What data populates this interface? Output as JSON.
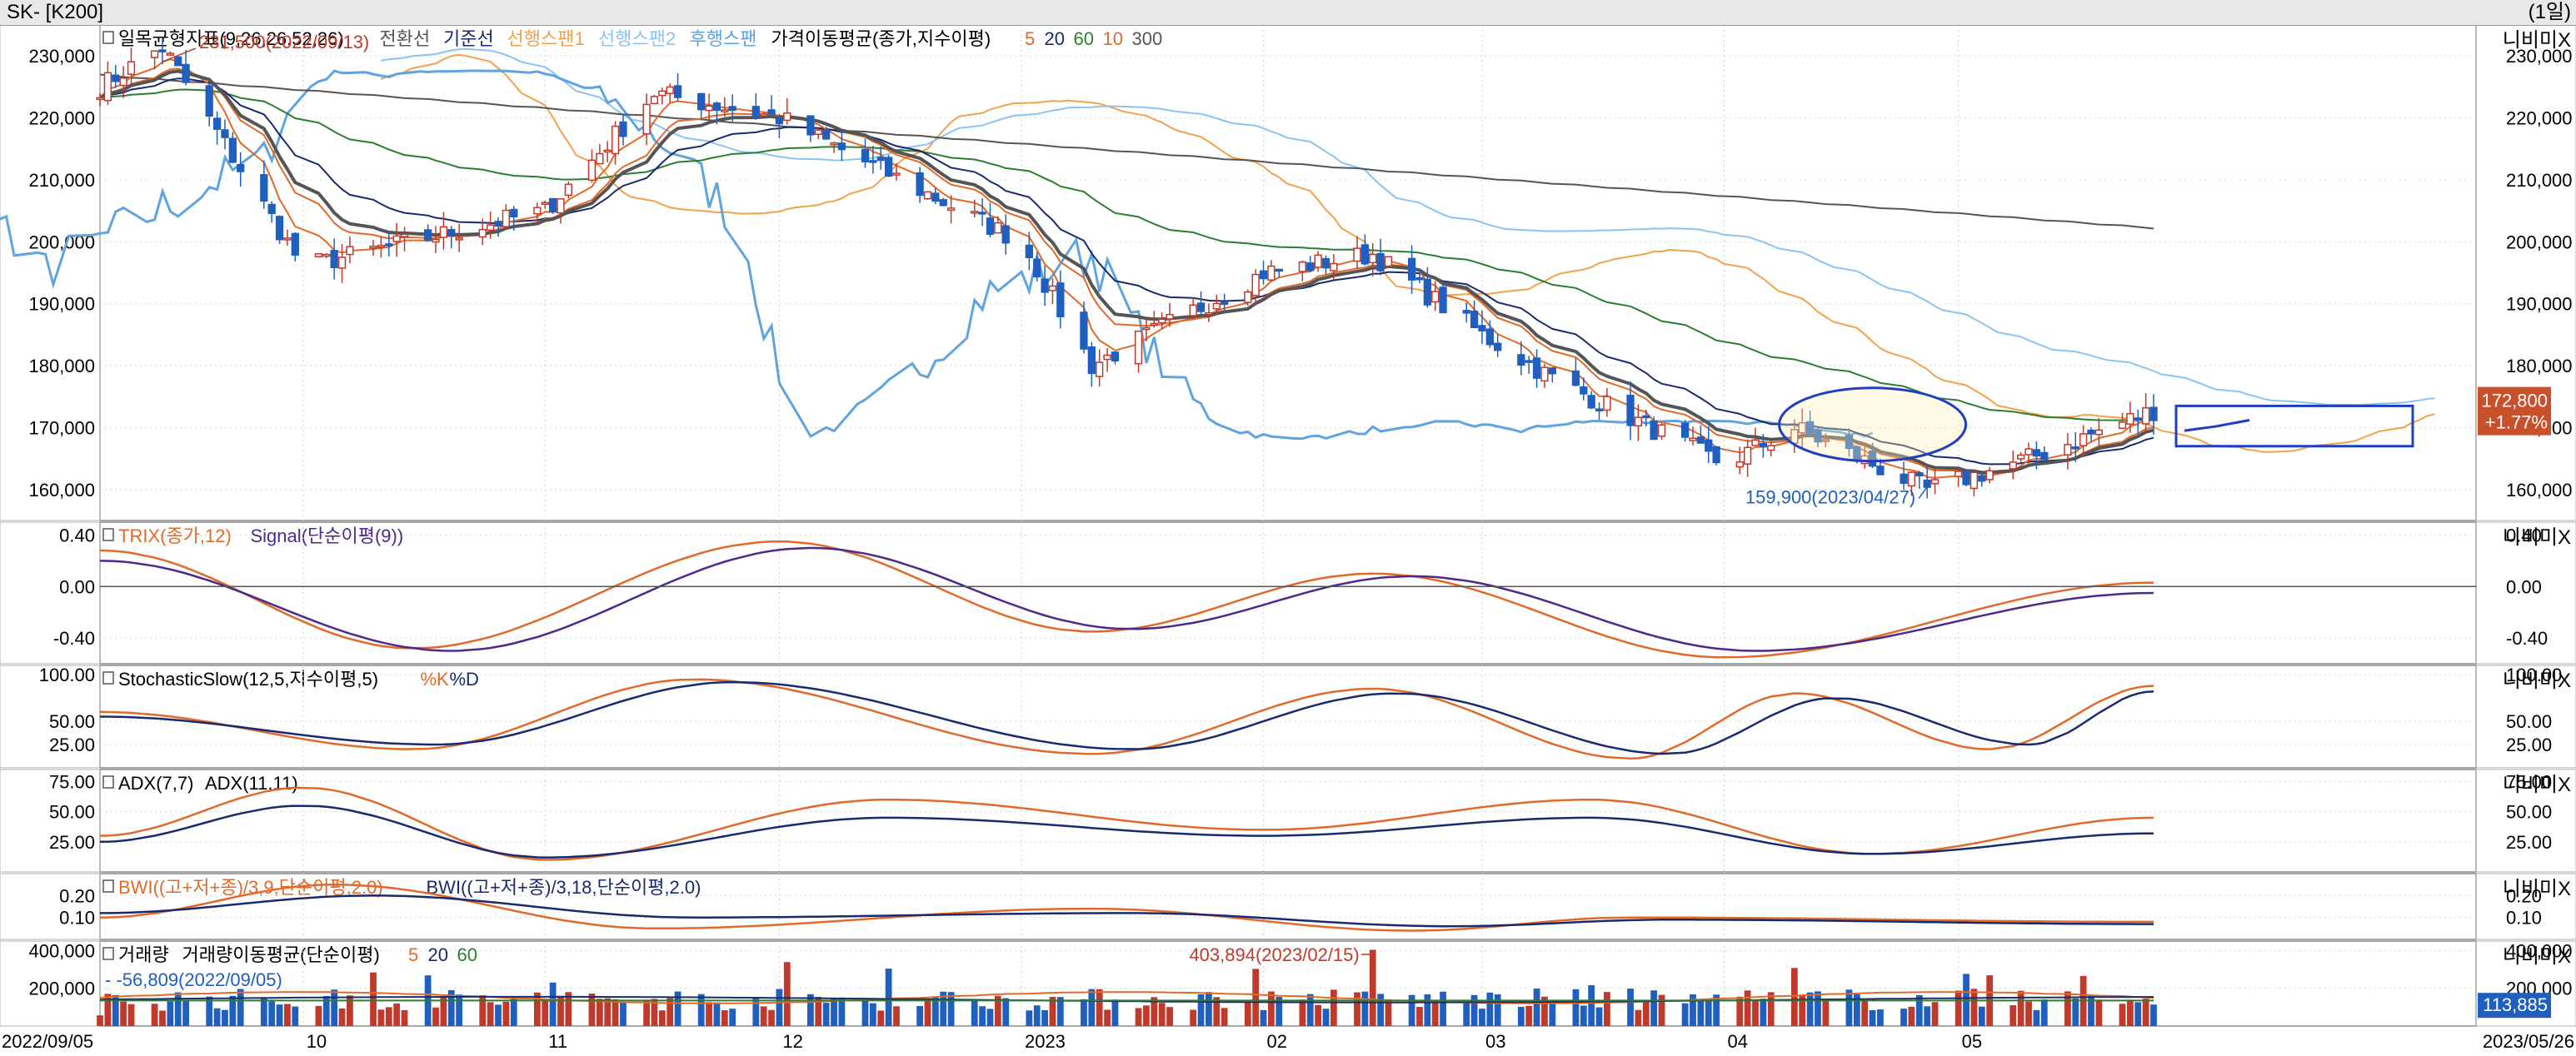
{
  "window": {
    "title": "SK- [K200]",
    "period": "(1일)"
  },
  "colors": {
    "up": "#c0392b",
    "down": "#1f5fbf",
    "conv": "#555555",
    "base": "#1a2a6e",
    "span1": "#f2a24a",
    "span2": "#8cc3f0",
    "lag": "#5fa3e0",
    "ma5": "#e06a2a",
    "ma20": "#1a2a6e",
    "ma60": "#2e7d2e",
    "ma10": "#e06a2a",
    "ma300": "#555555",
    "trix": "#e06a2a",
    "signal": "#4b2a8a",
    "k": "#e06a2a",
    "d": "#1a2a6e",
    "adx7": "#e06a2a",
    "adx11": "#1a2a6e",
    "bwi1": "#e06a2a",
    "bwi2": "#1a2a6e",
    "vol_ma5": "#e06a2a",
    "vol_ma20": "#1a2a6e",
    "vol_ma60": "#2e7d2e",
    "callout": "#1f3fbf"
  },
  "panes": {
    "price": {
      "legend": [
        {
          "text": "일목균형지표(9,26,26,52,26)",
          "color": "#000000"
        },
        {
          "text": "전환선",
          "color": "#555555"
        },
        {
          "text": "기준선",
          "color": "#1a2a6e"
        },
        {
          "text": "선행스팬1",
          "color": "#f2a24a"
        },
        {
          "text": "선행스팬2",
          "color": "#8cc3f0"
        },
        {
          "text": "후행스팬",
          "color": "#5fa3e0"
        },
        {
          "text": "가격이동평균(종가,지수이평)",
          "color": "#000000"
        },
        {
          "text": "5",
          "color": "#e06a2a"
        },
        {
          "text": "20",
          "color": "#1a2a6e"
        },
        {
          "text": "60",
          "color": "#2e7d2e"
        },
        {
          "text": "10",
          "color": "#e06a2a"
        },
        {
          "text": "300",
          "color": "#555555"
        }
      ],
      "ticks": [
        "230,000",
        "220,000",
        "210,000",
        "200,000",
        "190,000",
        "180,000",
        "170,000",
        "160,000"
      ],
      "last_price": "172,800",
      "last_change": "+1.77%",
      "annotations": {
        "high": "231,500(2022/09/13)",
        "low": "159,900(2023/04/27)"
      }
    },
    "trix": {
      "legend": [
        {
          "text": "TRIX(종가,12)",
          "color": "#e06a2a"
        },
        {
          "text": "Signal(단순이평(9))",
          "color": "#4b2a8a"
        }
      ],
      "ticks": [
        "0.40",
        "0.00",
        "-0.40"
      ]
    },
    "stoch": {
      "legend": [
        {
          "text": "StochasticSlow(12,5,지수이평,5)",
          "color": "#000000"
        },
        {
          "text": "%K",
          "color": "#e06a2a"
        },
        {
          "text": "%D",
          "color": "#1a2a6e"
        }
      ],
      "ticks": [
        "100.00",
        "50.00",
        "25.00"
      ]
    },
    "adx": {
      "legend": [
        {
          "text": "ADX(7,7)",
          "color": "#000000"
        },
        {
          "text": "ADX(11,11)",
          "color": "#000000"
        }
      ],
      "ticks": [
        "75.00",
        "50.00",
        "25.00"
      ]
    },
    "bwi": {
      "legend": [
        {
          "text": "BWI((고+저+종)/3,9,단순이평,2.0)",
          "color": "#e06a2a"
        },
        {
          "text": "BWI((고+저+종)/3,18,단순이평,2.0)",
          "color": "#1a2a6e"
        }
      ],
      "ticks": [
        "0.20",
        "0.10"
      ]
    },
    "volume": {
      "legend": [
        {
          "text": "거래량",
          "color": "#000000"
        },
        {
          "text": "거래량이동평균(단순이평)",
          "color": "#000000"
        },
        {
          "text": "5",
          "color": "#e06a2a"
        },
        {
          "text": "20",
          "color": "#1a2a6e"
        },
        {
          "text": "60",
          "color": "#2e7d2e"
        }
      ],
      "ticks": [
        "400,000",
        "200,000"
      ],
      "last_volume": "113,885",
      "annotations": {
        "high": "403,894(2023/02/15)",
        "low": "56,809(2022/09/05)"
      }
    }
  },
  "scale_button": "니비미X",
  "date_axis": {
    "start": "2022/09/05",
    "end": "2023/05/26",
    "labels": [
      "10",
      "11",
      "12",
      "2023",
      "02",
      "03",
      "04",
      "05"
    ]
  },
  "chart_data": [
    {
      "type": "candlestick",
      "title": "SK",
      "x_start": "2022/09/05",
      "x_end": "2023/05/26",
      "ylim": [
        155000,
        235000
      ],
      "key_points": [
        {
          "date": "2022/09/05",
          "close": 225000
        },
        {
          "date": "2022/09/13",
          "high": 231500
        },
        {
          "date": "2022/10/01",
          "close": 196000
        },
        {
          "date": "2022/11/01",
          "close": 205000
        },
        {
          "date": "2022/11/15",
          "close": 224000
        },
        {
          "date": "2022/12/01",
          "close": 220000
        },
        {
          "date": "2023/01/01",
          "close": 200000
        },
        {
          "date": "2023/01/10",
          "close": 180000
        },
        {
          "date": "2023/02/01",
          "close": 195000
        },
        {
          "date": "2023/02/15",
          "close": 198000
        },
        {
          "date": "2023/03/01",
          "close": 185000
        },
        {
          "date": "2023/03/10",
          "close": 178000
        },
        {
          "date": "2023/04/01",
          "close": 164000
        },
        {
          "date": "2023/04/10",
          "close": 170000
        },
        {
          "date": "2023/04/27",
          "low": 159900
        },
        {
          "date": "2023/05/10",
          "close": 165000
        },
        {
          "date": "2023/05/26",
          "close": 172800
        }
      ],
      "last_change_pct": 1.77
    },
    {
      "type": "line",
      "name": "TRIX",
      "ylim": [
        -0.6,
        0.5
      ],
      "series": [
        {
          "name": "TRIX(종가,12)",
          "dates": [
            "2022/09/05",
            "2022/10/15",
            "2022/12/01",
            "2023/01/10",
            "2023/02/15",
            "2023/04/01",
            "2023/05/26"
          ],
          "values": [
            0.28,
            -0.48,
            0.35,
            -0.35,
            0.1,
            -0.55,
            0.03
          ]
        },
        {
          "name": "Signal(단순이평(9))",
          "dates": [
            "2022/09/05",
            "2022/10/20",
            "2022/12/05",
            "2023/01/15",
            "2023/02/20",
            "2023/04/05",
            "2023/05/26"
          ],
          "values": [
            0.2,
            -0.5,
            0.3,
            -0.33,
            0.08,
            -0.5,
            -0.05
          ]
        }
      ]
    },
    {
      "type": "line",
      "name": "StochasticSlow",
      "ylim": [
        0,
        110
      ],
      "series": [
        {
          "name": "%K",
          "dates": [
            "2022/09/05",
            "2022/10/15",
            "2022/11/20",
            "2023/01/10",
            "2023/02/15",
            "2023/03/20",
            "2023/04/10",
            "2023/05/05",
            "2023/05/26"
          ],
          "values": [
            60,
            20,
            95,
            15,
            85,
            10,
            80,
            20,
            88
          ]
        },
        {
          "name": "%D",
          "dates": [
            "2022/09/05",
            "2022/10/18",
            "2022/11/25",
            "2023/01/15",
            "2023/02/18",
            "2023/03/25",
            "2023/04/15",
            "2023/05/10",
            "2023/05/26"
          ],
          "values": [
            55,
            25,
            92,
            20,
            80,
            15,
            75,
            25,
            82
          ]
        }
      ]
    },
    {
      "type": "line",
      "name": "ADX",
      "ylim": [
        0,
        85
      ],
      "series": [
        {
          "name": "ADX(7,7)",
          "dates": [
            "2022/09/05",
            "2022/10/01",
            "2022/11/01",
            "2022/12/15",
            "2023/02/01",
            "2023/03/15",
            "2023/04/20",
            "2023/05/26"
          ],
          "values": [
            30,
            70,
            10,
            60,
            35,
            60,
            15,
            45
          ]
        },
        {
          "name": "ADX(11,11)",
          "dates": [
            "2022/09/05",
            "2022/10/01",
            "2022/11/01",
            "2022/12/15",
            "2023/02/01",
            "2023/03/15",
            "2023/04/20",
            "2023/05/26"
          ],
          "values": [
            25,
            55,
            12,
            45,
            30,
            45,
            15,
            32
          ]
        }
      ]
    },
    {
      "type": "line",
      "name": "BWI",
      "ylim": [
        0,
        0.3
      ],
      "series": [
        {
          "name": "BWI 9",
          "dates": [
            "2022/09/05",
            "2022/10/05",
            "2022/11/15",
            "2023/01/10",
            "2023/02/20",
            "2023/03/20",
            "2023/05/26"
          ],
          "values": [
            0.1,
            0.25,
            0.05,
            0.14,
            0.04,
            0.1,
            0.08
          ]
        },
        {
          "name": "BWI 18",
          "dates": [
            "2022/09/05",
            "2022/10/10",
            "2022/11/20",
            "2023/01/15",
            "2023/02/25",
            "2023/03/25",
            "2023/05/26"
          ],
          "values": [
            0.12,
            0.2,
            0.1,
            0.12,
            0.06,
            0.09,
            0.07
          ]
        }
      ]
    },
    {
      "type": "bar",
      "name": "거래량",
      "ylim": [
        0,
        450000
      ],
      "values_summary": [
        {
          "date": "2022/09/05",
          "value": 56809
        },
        {
          "date": "2023/02/15",
          "value": 403894
        },
        {
          "date": "2023/05/26",
          "value": 113885
        }
      ]
    }
  ]
}
